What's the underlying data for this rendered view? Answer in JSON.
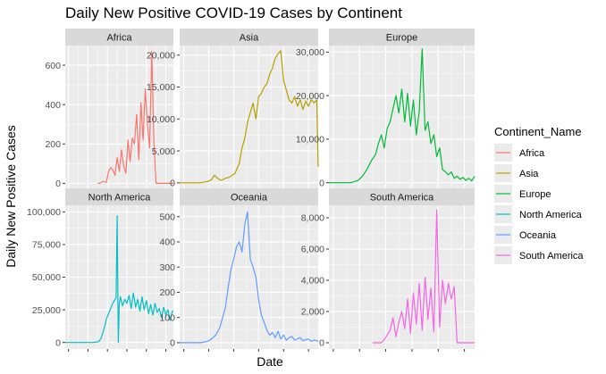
{
  "chart_data": {
    "type": "line",
    "title": "Daily New Positive COVID-19 Cases by Continent",
    "xlabel": "Date",
    "ylabel": "Daily New Positive Cases",
    "legend": {
      "title": "Continent_Name",
      "placement": "right"
    },
    "grid": true,
    "facets": [
      {
        "name": "Africa",
        "color": "#F8766D",
        "ylim": [
          -30,
          700
        ],
        "yticks": [
          0,
          200,
          400,
          600
        ],
        "ytick_labels": [
          "0",
          "200",
          "400",
          "600"
        ],
        "x": [
          0.3,
          0.32,
          0.35,
          0.38,
          0.4,
          0.42,
          0.44,
          0.46,
          0.48,
          0.5,
          0.52,
          0.54,
          0.56,
          0.58,
          0.6,
          0.62,
          0.64,
          0.66,
          0.68,
          0.7,
          0.72,
          0.74,
          0.76,
          0.78,
          0.8,
          0.82,
          0.84,
          0.86,
          0.88,
          0.9,
          0.92,
          0.94,
          0.96,
          0.98,
          1.0
        ],
        "values": [
          0,
          0,
          10,
          5,
          60,
          80,
          70,
          40,
          130,
          60,
          170,
          90,
          50,
          220,
          110,
          230,
          200,
          350,
          120,
          410,
          220,
          480,
          300,
          180,
          670,
          210,
          0,
          0,
          0,
          0,
          0,
          0,
          0,
          0,
          0
        ]
      },
      {
        "name": "Asia",
        "color": "#B79F00",
        "ylim": [
          -1000,
          21500
        ],
        "yticks": [
          0,
          5000,
          10000,
          15000,
          20000
        ],
        "ytick_labels": [
          "0",
          "5,000",
          "10,000",
          "15,000",
          "20,000"
        ],
        "x": [
          0.0,
          0.05,
          0.1,
          0.15,
          0.2,
          0.23,
          0.25,
          0.28,
          0.3,
          0.33,
          0.36,
          0.4,
          0.43,
          0.45,
          0.47,
          0.49,
          0.51,
          0.53,
          0.55,
          0.57,
          0.59,
          0.61,
          0.63,
          0.65,
          0.67,
          0.69,
          0.71,
          0.73,
          0.75,
          0.77,
          0.79,
          0.81,
          0.83,
          0.85,
          0.87,
          0.89,
          0.91,
          0.93,
          0.95,
          0.97,
          0.99,
          1.0
        ],
        "values": [
          0,
          0,
          0,
          0,
          200,
          500,
          1200,
          600,
          400,
          700,
          900,
          1500,
          3000,
          5500,
          7000,
          9500,
          11000,
          12500,
          10000,
          13500,
          14000,
          15000,
          15500,
          17000,
          18000,
          19500,
          20200,
          20700,
          16000,
          14500,
          13000,
          12500,
          13500,
          12000,
          13000,
          11500,
          12800,
          12000,
          13000,
          12500,
          13000,
          2500
        ]
      },
      {
        "name": "Europe",
        "color": "#00BA38",
        "ylim": [
          -1500,
          31500
        ],
        "yticks": [
          0,
          10000,
          20000,
          30000
        ],
        "ytick_labels": [
          "0",
          "10,000",
          "20,000",
          "30,000"
        ],
        "x": [
          0.0,
          0.05,
          0.1,
          0.15,
          0.2,
          0.23,
          0.26,
          0.29,
          0.32,
          0.34,
          0.36,
          0.38,
          0.4,
          0.42,
          0.44,
          0.46,
          0.48,
          0.5,
          0.52,
          0.54,
          0.56,
          0.58,
          0.6,
          0.62,
          0.64,
          0.66,
          0.68,
          0.7,
          0.72,
          0.74,
          0.76,
          0.78,
          0.8,
          0.82,
          0.84,
          0.86,
          0.88,
          0.9,
          0.92,
          0.94,
          0.96,
          0.98,
          1.0
        ],
        "values": [
          0,
          0,
          0,
          0,
          500,
          1500,
          3000,
          5000,
          6500,
          9000,
          11000,
          8000,
          12500,
          14000,
          17000,
          20000,
          16000,
          21500,
          14000,
          20500,
          13000,
          19000,
          11000,
          16500,
          30700,
          12000,
          14000,
          9000,
          11000,
          6000,
          8000,
          3000,
          2500,
          1800,
          2500,
          1000,
          1500,
          800,
          1200,
          500,
          1000,
          400,
          1500
        ]
      },
      {
        "name": "North America",
        "color": "#00BFC4",
        "ylim": [
          -5000,
          105000
        ],
        "yticks": [
          0,
          25000,
          50000,
          75000,
          100000
        ],
        "ytick_labels": [
          "0",
          "25,000",
          "50,000",
          "75,000",
          "100,000"
        ],
        "x": [
          0.0,
          0.05,
          0.1,
          0.15,
          0.2,
          0.25,
          0.28,
          0.31,
          0.33,
          0.35,
          0.37,
          0.38,
          0.4,
          0.42,
          0.44,
          0.46,
          0.47,
          0.48,
          0.49,
          0.5,
          0.51,
          0.53,
          0.55,
          0.57,
          0.59,
          0.61,
          0.63,
          0.65,
          0.67,
          0.69,
          0.71,
          0.73,
          0.75,
          0.77,
          0.79,
          0.81,
          0.83,
          0.85,
          0.87,
          0.89,
          0.91,
          0.93,
          0.95,
          0.97,
          0.99,
          1.0
        ],
        "values": [
          0,
          0,
          0,
          0,
          0,
          0,
          200,
          800,
          3000,
          8000,
          14000,
          18000,
          22000,
          26000,
          30000,
          33000,
          34000,
          97000,
          0,
          30000,
          35000,
          28000,
          33000,
          30000,
          36000,
          26000,
          38000,
          27000,
          33000,
          24000,
          35000,
          25000,
          32000,
          22000,
          29000,
          21000,
          30000,
          23000,
          26000,
          19000,
          27000,
          21000,
          25000,
          17000,
          24000,
          24500
        ]
      },
      {
        "name": "Oceania",
        "color": "#619CFF",
        "ylim": [
          -25,
          545
        ],
        "yticks": [
          0,
          100,
          200,
          300,
          400,
          500
        ],
        "ytick_labels": [
          "0",
          "100",
          "200",
          "300",
          "400",
          "500"
        ],
        "x": [
          0.0,
          0.05,
          0.1,
          0.15,
          0.2,
          0.23,
          0.26,
          0.29,
          0.31,
          0.33,
          0.35,
          0.37,
          0.39,
          0.41,
          0.43,
          0.45,
          0.47,
          0.49,
          0.51,
          0.53,
          0.55,
          0.57,
          0.59,
          0.61,
          0.63,
          0.65,
          0.67,
          0.69,
          0.71,
          0.73,
          0.75,
          0.77,
          0.79,
          0.81,
          0.83,
          0.85,
          0.87,
          0.89,
          0.91,
          0.93,
          0.95,
          0.97,
          0.99,
          1.0
        ],
        "values": [
          0,
          0,
          0,
          0,
          5,
          15,
          30,
          60,
          100,
          140,
          220,
          290,
          330,
          380,
          400,
          360,
          470,
          520,
          330,
          300,
          260,
          170,
          110,
          80,
          50,
          30,
          40,
          20,
          45,
          15,
          30,
          10,
          20,
          25,
          10,
          15,
          20,
          8,
          12,
          15,
          5,
          10,
          8,
          5
        ]
      },
      {
        "name": "South America",
        "color": "#F564E3",
        "ylim": [
          -400,
          8800
        ],
        "yticks": [
          0,
          2000,
          4000,
          6000,
          8000
        ],
        "ytick_labels": [
          "0",
          "2,000",
          "4,000",
          "6,000",
          "8,000"
        ],
        "x": [
          0.3,
          0.33,
          0.36,
          0.38,
          0.4,
          0.42,
          0.44,
          0.46,
          0.48,
          0.5,
          0.52,
          0.54,
          0.56,
          0.58,
          0.6,
          0.62,
          0.64,
          0.66,
          0.68,
          0.7,
          0.72,
          0.74,
          0.76,
          0.78,
          0.8,
          0.82,
          0.84,
          0.86,
          0.88,
          0.9,
          0.92,
          0.94,
          0.96,
          0.98,
          1.0
        ],
        "values": [
          0,
          0,
          0,
          200,
          500,
          800,
          1600,
          400,
          1300,
          2000,
          900,
          2800,
          600,
          3200,
          1200,
          3800,
          800,
          4200,
          1500,
          3500,
          700,
          8500,
          1000,
          4000,
          2500,
          3800,
          2800,
          3600,
          0,
          0,
          0,
          0,
          0,
          0,
          0
        ]
      }
    ]
  }
}
